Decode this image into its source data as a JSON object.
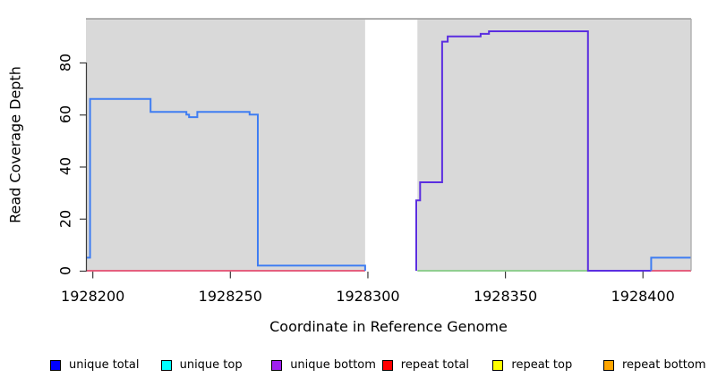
{
  "chart_data": {
    "type": "line",
    "subtype": "step",
    "title": "",
    "xlabel": "Coordinate in Reference Genome",
    "ylabel": "Read Coverage Depth",
    "xlim": [
      1928197.5,
      1928417.5
    ],
    "ylim": [
      0,
      96.8
    ],
    "x_ticks": [
      1928200,
      1928250,
      1928300,
      1928350,
      1928400
    ],
    "y_ticks": [
      0,
      20,
      40,
      60,
      80
    ],
    "grid": "off",
    "panel_bg": "#d9d9d9",
    "panel_border_top": "#888888",
    "panel_border_right": "#ababab",
    "axis_color": "#3a3a3a",
    "masked_region": [
      1928299,
      1928318
    ],
    "series": [
      {
        "name": "repeat total baseline",
        "color": "#e4607e",
        "width": 2,
        "segments": [
          [
            [
              1928197.5,
              0
            ],
            [
              1928299,
              0
            ]
          ],
          [
            [
              1928403,
              0
            ],
            [
              1928417.5,
              0
            ]
          ]
        ]
      },
      {
        "name": "baseline overlap",
        "color": "#90ce90",
        "width": 2,
        "segments": [
          [
            [
              1928318,
              0
            ],
            [
              1928380,
              0
            ]
          ]
        ]
      },
      {
        "name": "unique bottom",
        "color": "#5b2ee0",
        "width": 2,
        "segments": [
          [
            [
              1928317.6,
              0
            ],
            [
              1928317.6,
              27
            ],
            [
              1928319,
              27
            ],
            [
              1928319,
              34
            ],
            [
              1928327,
              34
            ],
            [
              1928327,
              88
            ],
            [
              1928329,
              88
            ],
            [
              1928329,
              90
            ],
            [
              1928341,
              90
            ],
            [
              1928341,
              91
            ],
            [
              1928344,
              91
            ],
            [
              1928344,
              92
            ],
            [
              1928380,
              92
            ],
            [
              1928380,
              0
            ],
            [
              1928403,
              0
            ]
          ]
        ]
      },
      {
        "name": "unique total",
        "color": "#3f7df2",
        "width": 2,
        "segments": [
          [
            [
              1928197.5,
              5
            ],
            [
              1928199,
              5
            ],
            [
              1928199,
              66
            ],
            [
              1928221,
              66
            ],
            [
              1928221,
              61
            ],
            [
              1928234,
              61
            ],
            [
              1928234,
              60
            ],
            [
              1928235,
              60
            ],
            [
              1928235,
              59
            ],
            [
              1928238,
              59
            ],
            [
              1928238,
              61
            ],
            [
              1928257,
              61
            ],
            [
              1928257,
              60
            ],
            [
              1928260,
              60
            ],
            [
              1928260,
              2
            ],
            [
              1928299,
              2
            ],
            [
              1928299,
              0
            ]
          ],
          [
            [
              1928403,
              0
            ],
            [
              1928403,
              5
            ],
            [
              1928417.5,
              5
            ]
          ]
        ]
      }
    ],
    "legend": [
      {
        "label": "unique total",
        "color": "#0000ff"
      },
      {
        "label": "unique top",
        "color": "#00ffff"
      },
      {
        "label": "unique bottom",
        "color": "#a020f0"
      },
      {
        "label": "repeat total",
        "color": "#ff0000"
      },
      {
        "label": "repeat top",
        "color": "#ffff00"
      },
      {
        "label": "repeat bottom",
        "color": "#ffa500"
      }
    ],
    "legend_position": "bottom"
  }
}
